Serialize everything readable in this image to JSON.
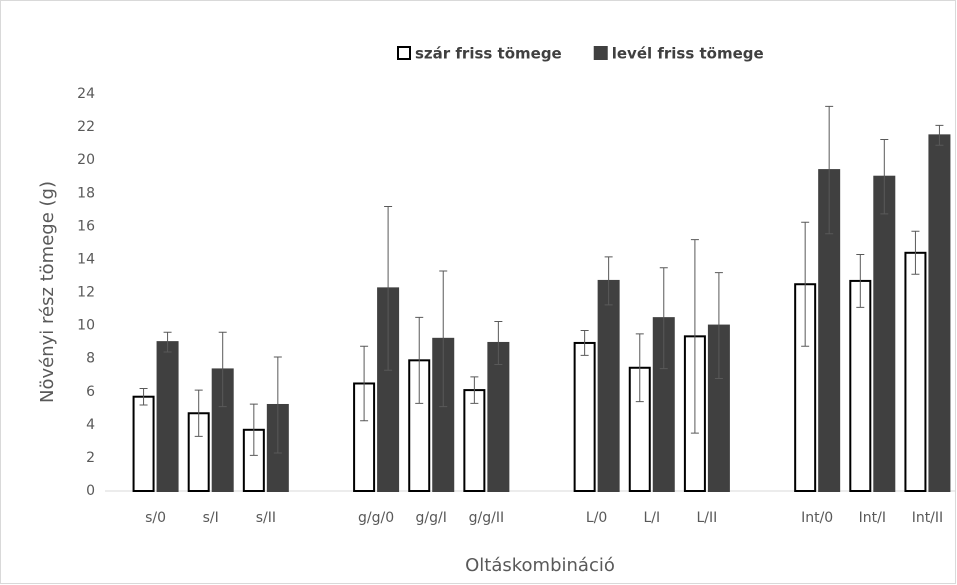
{
  "chart_data": {
    "type": "bar",
    "legend": "top",
    "y_label": "Növényi rész tömege (g)",
    "x_label": "Oltáskombináció",
    "categories": [
      "s/0",
      "s/I",
      "s/II",
      null,
      "g/g/0",
      "g/g/I",
      "g/g/II",
      null,
      "L/0",
      "L/I",
      "L/II",
      null,
      "Int/0",
      "Int/I",
      "Int/II"
    ],
    "series": [
      {
        "name": "szár friss tömege",
        "color": "#ffffff",
        "edge": "#000000",
        "values": [
          5.7,
          4.7,
          3.7,
          null,
          6.5,
          7.9,
          6.1,
          null,
          8.95,
          7.45,
          9.35,
          null,
          12.5,
          12.7,
          14.4
        ],
        "errors": [
          0.5,
          1.4,
          1.55,
          null,
          2.25,
          2.6,
          0.8,
          null,
          0.75,
          2.05,
          5.85,
          null,
          3.75,
          1.6,
          1.3
        ]
      },
      {
        "name": "levél friss tömege",
        "color": "#404040",
        "edge": "#404040",
        "values": [
          9.0,
          7.35,
          5.2,
          null,
          12.25,
          9.2,
          8.95,
          null,
          12.7,
          10.45,
          10.0,
          null,
          19.4,
          19.0,
          21.5
        ],
        "errors": [
          0.6,
          2.25,
          2.9,
          null,
          4.95,
          4.1,
          1.3,
          null,
          1.45,
          3.05,
          3.2,
          null,
          3.85,
          2.25,
          0.6
        ]
      }
    ],
    "ylim": [
      0,
      24
    ],
    "yticks": [
      0,
      2,
      4,
      6,
      8,
      10,
      12,
      14,
      16,
      18,
      20,
      22,
      24
    ],
    "grid": false
  }
}
